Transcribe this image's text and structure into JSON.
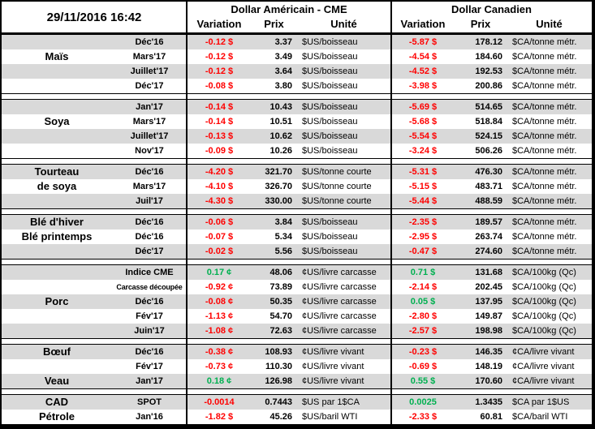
{
  "palette": {
    "negative_color": "#ff0000",
    "positive_color": "#00b050",
    "stripe_color": "#d9d9d9",
    "border_color": "#000000"
  },
  "header": {
    "timestamp": "29/11/2016 16:42",
    "us_group": "Dollar Américain - CME",
    "ca_group": "Dollar Canadien",
    "columns": {
      "variation": "Variation",
      "prix": "Prix",
      "unite": "Unité"
    }
  },
  "sections": [
    {
      "rows": [
        {
          "cat": "",
          "month": "Déc'16",
          "us_var": "-0.12 $",
          "us_prix": "3.37",
          "us_unit": "$US/boisseau",
          "ca_var": "-5.87 $",
          "ca_prix": "178.12",
          "ca_unit": "$CA/tonne métr."
        },
        {
          "cat": "Maïs",
          "month": "Mars'17",
          "us_var": "-0.12 $",
          "us_prix": "3.49",
          "us_unit": "$US/boisseau",
          "ca_var": "-4.54 $",
          "ca_prix": "184.60",
          "ca_unit": "$CA/tonne métr."
        },
        {
          "cat": "",
          "month": "Juillet'17",
          "us_var": "-0.12 $",
          "us_prix": "3.64",
          "us_unit": "$US/boisseau",
          "ca_var": "-4.52 $",
          "ca_prix": "192.53",
          "ca_unit": "$CA/tonne métr."
        },
        {
          "cat": "",
          "month": "Déc'17",
          "us_var": "-0.08 $",
          "us_prix": "3.80",
          "us_unit": "$US/boisseau",
          "ca_var": "-3.98 $",
          "ca_prix": "200.86",
          "ca_unit": "$CA/tonne métr."
        }
      ]
    },
    {
      "rows": [
        {
          "cat": "",
          "month": "Jan'17",
          "us_var": "-0.14 $",
          "us_prix": "10.43",
          "us_unit": "$US/boisseau",
          "ca_var": "-5.69 $",
          "ca_prix": "514.65",
          "ca_unit": "$CA/tonne métr."
        },
        {
          "cat": "Soya",
          "month": "Mars'17",
          "us_var": "-0.14 $",
          "us_prix": "10.51",
          "us_unit": "$US/boisseau",
          "ca_var": "-5.68 $",
          "ca_prix": "518.84",
          "ca_unit": "$CA/tonne métr."
        },
        {
          "cat": "",
          "month": "Juillet'17",
          "us_var": "-0.13 $",
          "us_prix": "10.62",
          "us_unit": "$US/boisseau",
          "ca_var": "-5.54 $",
          "ca_prix": "524.15",
          "ca_unit": "$CA/tonne métr."
        },
        {
          "cat": "",
          "month": "Nov'17",
          "us_var": "-0.09 $",
          "us_prix": "10.26",
          "us_unit": "$US/boisseau",
          "ca_var": "-3.24 $",
          "ca_prix": "506.26",
          "ca_unit": "$CA/tonne métr."
        }
      ]
    },
    {
      "rows": [
        {
          "cat": "Tourteau",
          "month": "Déc'16",
          "us_var": "-4.20 $",
          "us_prix": "321.70",
          "us_unit": "$US/tonne courte",
          "ca_var": "-5.31 $",
          "ca_prix": "476.30",
          "ca_unit": "$CA/tonne métr."
        },
        {
          "cat": "de soya",
          "month": "Mars'17",
          "us_var": "-4.10 $",
          "us_prix": "326.70",
          "us_unit": "$US/tonne courte",
          "ca_var": "-5.15 $",
          "ca_prix": "483.71",
          "ca_unit": "$CA/tonne métr."
        },
        {
          "cat": "",
          "month": "Juil'17",
          "us_var": "-4.30 $",
          "us_prix": "330.00",
          "us_unit": "$US/tonne courte",
          "ca_var": "-5.44 $",
          "ca_prix": "488.59",
          "ca_unit": "$CA/tonne métr."
        }
      ]
    },
    {
      "rows": [
        {
          "cat": "Blé d'hiver",
          "month": "Déc'16",
          "us_var": "-0.06 $",
          "us_prix": "3.84",
          "us_unit": "$US/boisseau",
          "ca_var": "-2.35 $",
          "ca_prix": "189.57",
          "ca_unit": "$CA/tonne métr."
        },
        {
          "cat": "Blé printemps",
          "month": "Déc'16",
          "us_var": "-0.07 $",
          "us_prix": "5.34",
          "us_unit": "$US/boisseau",
          "ca_var": "-2.95 $",
          "ca_prix": "263.74",
          "ca_unit": "$CA/tonne métr."
        },
        {
          "cat": "",
          "month": "Déc'17",
          "us_var": "-0.02 $",
          "us_prix": "5.56",
          "us_unit": "$US/boisseau",
          "ca_var": "-0.47 $",
          "ca_prix": "274.60",
          "ca_unit": "$CA/tonne métr."
        }
      ]
    },
    {
      "rows": [
        {
          "cat": "",
          "month": "Indice CME",
          "us_var": "0.17 ¢",
          "us_prix": "48.06",
          "us_unit": "¢US/livre carcasse",
          "ca_var": "0.71 $",
          "ca_prix": "131.68",
          "ca_unit": "$CA/100kg (Qc)"
        },
        {
          "cat": "",
          "month": "Carcasse découpée",
          "us_var": "-0.92 ¢",
          "us_prix": "73.89",
          "us_unit": "¢US/livre carcasse",
          "ca_var": "-2.14 $",
          "ca_prix": "202.45",
          "ca_unit": "$CA/100kg (Qc)"
        },
        {
          "cat": "Porc",
          "month": "Déc'16",
          "us_var": "-0.08 ¢",
          "us_prix": "50.35",
          "us_unit": "¢US/livre carcasse",
          "ca_var": "0.05 $",
          "ca_prix": "137.95",
          "ca_unit": "$CA/100kg (Qc)"
        },
        {
          "cat": "",
          "month": "Fév'17",
          "us_var": "-1.13 ¢",
          "us_prix": "54.70",
          "us_unit": "¢US/livre carcasse",
          "ca_var": "-2.80 $",
          "ca_prix": "149.87",
          "ca_unit": "$CA/100kg (Qc)"
        },
        {
          "cat": "",
          "month": "Juin'17",
          "us_var": "-1.08 ¢",
          "us_prix": "72.63",
          "us_unit": "¢US/livre carcasse",
          "ca_var": "-2.57 $",
          "ca_prix": "198.98",
          "ca_unit": "$CA/100kg (Qc)"
        }
      ]
    },
    {
      "rows": [
        {
          "cat": "Bœuf",
          "month": "Déc'16",
          "us_var": "-0.38 ¢",
          "us_prix": "108.93",
          "us_unit": "¢US/livre vivant",
          "ca_var": "-0.23 $",
          "ca_prix": "146.35",
          "ca_unit": "¢CA/livre vivant"
        },
        {
          "cat": "",
          "month": "Fév'17",
          "us_var": "-0.73 ¢",
          "us_prix": "110.30",
          "us_unit": "¢US/livre vivant",
          "ca_var": "-0.69 $",
          "ca_prix": "148.19",
          "ca_unit": "¢CA/livre vivant"
        },
        {
          "cat": "Veau",
          "month": "Jan'17",
          "us_var": "0.18 ¢",
          "us_prix": "126.98",
          "us_unit": "¢US/livre vivant",
          "ca_var": "0.55 $",
          "ca_prix": "170.60",
          "ca_unit": "¢CA/livre vivant"
        }
      ]
    },
    {
      "rows": [
        {
          "cat": "CAD",
          "month": "SPOT",
          "us_var": "-0.0014",
          "us_prix": "0.7443",
          "us_unit": "$US par 1$CA",
          "ca_var": "0.0025",
          "ca_prix": "1.3435",
          "ca_unit": "$CA par 1$US"
        },
        {
          "cat": "Pétrole",
          "month": "Jan'16",
          "us_var": "-1.82 $",
          "us_prix": "45.26",
          "us_unit": "$US/baril WTI",
          "ca_var": "-2.33 $",
          "ca_prix": "60.81",
          "ca_unit": "$CA/baril WTI"
        }
      ]
    }
  ]
}
